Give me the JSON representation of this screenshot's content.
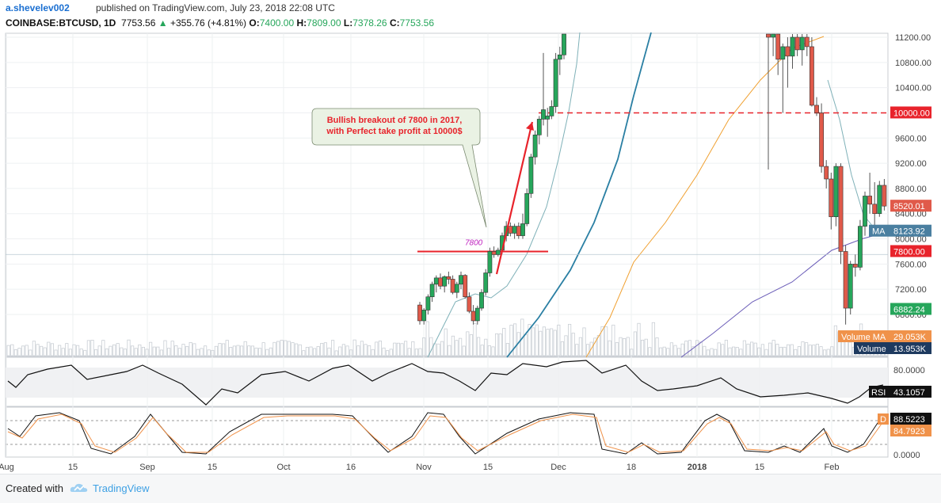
{
  "header": {
    "author": "a.shevelev002",
    "published": "published on TradingView.com, July 23, 2018 22:08 UTC",
    "symbol": "COINBASE:BTCUSD, 1D",
    "last": "7753.56",
    "change_arrow": "▲",
    "change": "+355.76 (+4.81%)",
    "o_label": "O:",
    "o": "7400.00",
    "h_label": "H:",
    "h": "7809.00",
    "l_label": "L:",
    "l": "7378.26",
    "c_label": "C:",
    "c": "7753.56"
  },
  "annotation": {
    "callout_line1": "Bullish breakout of 7800 in 2017,",
    "callout_line2": "with Perfect take profit at 10000$",
    "level_label": "7800"
  },
  "price_axis": {
    "ticks": [
      "11200.00",
      "10800.00",
      "10400.00",
      "10000.00",
      "9600.00",
      "9200.00",
      "8800.00",
      "8400.00",
      "8000.00",
      "7600.00",
      "7200.00",
      "6800.00"
    ],
    "badges": [
      {
        "text": "10000.00",
        "color": "#e8232b",
        "kind": "level"
      },
      {
        "text": "8520.01",
        "color": "#e05a4a",
        "kind": "last"
      },
      {
        "text": "8123.92",
        "color": "#4a7fa0",
        "kind": "ma"
      },
      {
        "text": "7800.00",
        "color": "#e8232b",
        "kind": "level"
      },
      {
        "text": "6882.24",
        "color": "#26a65b",
        "kind": "price"
      },
      {
        "text": "29.053K",
        "color": "#f0924a",
        "kind": "vol-ma"
      },
      {
        "text": "13.953K",
        "color": "#1e3a5f",
        "kind": "vol"
      }
    ],
    "ma_label": "MA",
    "vol_ma_label": "Volume MA",
    "vol_label": "Volume"
  },
  "rsi": {
    "label": "RSI",
    "value": "43.1057",
    "tick": "80.0000"
  },
  "stoch": {
    "label": "D",
    "value1": "88.5223",
    "value2": "84.7923",
    "tick": "0.0000"
  },
  "time_axis": [
    "Aug",
    "15",
    "Sep",
    "15",
    "Oct",
    "16",
    "Nov",
    "15",
    "Dec",
    "18",
    "2018",
    "15",
    "Feb"
  ],
  "footer": {
    "created": "Created with",
    "brand": "TradingView"
  },
  "colors": {
    "up": "#26a65b",
    "down": "#e05a4a",
    "level": "#e8232b",
    "ma_fast": "#7fb1b8",
    "ma_mid": "#2a7fa3",
    "ma_slow": "#f0a030",
    "ma_long": "#6b5db8"
  },
  "chart_data": {
    "type": "candlestick",
    "title": "COINBASE:BTCUSD, 1D",
    "ylim": [
      6640,
      11300
    ],
    "levels": [
      7800,
      10000
    ],
    "candles": [
      {
        "o": 6950,
        "h": 7000,
        "l": 6640,
        "c": 6700
      },
      {
        "o": 6700,
        "h": 6900,
        "l": 6640,
        "c": 6870
      },
      {
        "o": 6870,
        "h": 7120,
        "l": 6800,
        "c": 7080
      },
      {
        "o": 7080,
        "h": 7320,
        "l": 7000,
        "c": 7280
      },
      {
        "o": 7280,
        "h": 7420,
        "l": 7150,
        "c": 7380
      },
      {
        "o": 7380,
        "h": 7450,
        "l": 7200,
        "c": 7250
      },
      {
        "o": 7250,
        "h": 7420,
        "l": 7150,
        "c": 7400
      },
      {
        "o": 7400,
        "h": 7480,
        "l": 7280,
        "c": 7360
      },
      {
        "o": 7360,
        "h": 7420,
        "l": 7120,
        "c": 7150
      },
      {
        "o": 7150,
        "h": 7320,
        "l": 7060,
        "c": 7280
      },
      {
        "o": 7280,
        "h": 7480,
        "l": 7200,
        "c": 7420
      },
      {
        "o": 7420,
        "h": 7440,
        "l": 7050,
        "c": 7080
      },
      {
        "o": 7080,
        "h": 7150,
        "l": 6820,
        "c": 6850
      },
      {
        "o": 6850,
        "h": 6950,
        "l": 6640,
        "c": 6700
      },
      {
        "o": 6700,
        "h": 6940,
        "l": 6640,
        "c": 6900
      },
      {
        "o": 6900,
        "h": 7200,
        "l": 6860,
        "c": 7150
      },
      {
        "o": 7150,
        "h": 7520,
        "l": 7100,
        "c": 7460
      },
      {
        "o": 7460,
        "h": 7860,
        "l": 7400,
        "c": 7800
      },
      {
        "o": 7800,
        "h": 7880,
        "l": 7700,
        "c": 7750
      },
      {
        "o": 7750,
        "h": 7860,
        "l": 7720,
        "c": 7820
      },
      {
        "o": 7820,
        "h": 8100,
        "l": 7760,
        "c": 8050
      },
      {
        "o": 8050,
        "h": 8280,
        "l": 7960,
        "c": 8200
      },
      {
        "o": 8200,
        "h": 8260,
        "l": 8040,
        "c": 8090
      },
      {
        "o": 8090,
        "h": 8240,
        "l": 8000,
        "c": 8200
      },
      {
        "o": 8200,
        "h": 8260,
        "l": 8000,
        "c": 8050
      },
      {
        "o": 8050,
        "h": 8400,
        "l": 8000,
        "c": 8240
      },
      {
        "o": 8240,
        "h": 8800,
        "l": 8200,
        "c": 8720
      },
      {
        "o": 8720,
        "h": 9350,
        "l": 8650,
        "c": 9300
      },
      {
        "o": 9300,
        "h": 9720,
        "l": 9180,
        "c": 9650
      },
      {
        "o": 9650,
        "h": 9950,
        "l": 9500,
        "c": 9900
      },
      {
        "o": 9900,
        "h": 10950,
        "l": 9800,
        "c": 10050
      },
      {
        "o": 9900,
        "h": 10080,
        "l": 9620,
        "c": 9950
      },
      {
        "o": 9950,
        "h": 10200,
        "l": 9900,
        "c": 10100
      },
      {
        "o": 10100,
        "h": 10950,
        "l": 10000,
        "c": 10850
      },
      {
        "o": 10850,
        "h": 11050,
        "l": 10600,
        "c": 10920
      },
      {
        "o": 10920,
        "h": 11400,
        "l": 10850,
        "c": 11300
      }
    ],
    "candles_right": [
      {
        "o": 11250,
        "h": 11350,
        "l": 9100,
        "c": 11200
      },
      {
        "o": 11200,
        "h": 11350,
        "l": 10900,
        "c": 11250
      },
      {
        "o": 11250,
        "h": 11350,
        "l": 10600,
        "c": 10850
      },
      {
        "o": 10850,
        "h": 11100,
        "l": 10000,
        "c": 11050
      },
      {
        "o": 11050,
        "h": 11200,
        "l": 10400,
        "c": 10900
      },
      {
        "o": 10900,
        "h": 11300,
        "l": 10700,
        "c": 11200
      },
      {
        "o": 11200,
        "h": 11350,
        "l": 10900,
        "c": 11000
      },
      {
        "o": 11000,
        "h": 11300,
        "l": 10750,
        "c": 11200
      },
      {
        "o": 11200,
        "h": 11300,
        "l": 10900,
        "c": 11050
      },
      {
        "o": 11050,
        "h": 11200,
        "l": 10100,
        "c": 10120
      },
      {
        "o": 10120,
        "h": 10250,
        "l": 9950,
        "c": 10000
      },
      {
        "o": 10000,
        "h": 10150,
        "l": 9050,
        "c": 9150
      },
      {
        "o": 9150,
        "h": 9250,
        "l": 8800,
        "c": 8950
      },
      {
        "o": 8950,
        "h": 9050,
        "l": 8150,
        "c": 8350
      },
      {
        "o": 8350,
        "h": 9200,
        "l": 8200,
        "c": 9150
      },
      {
        "o": 9150,
        "h": 9200,
        "l": 7600,
        "c": 7800
      },
      {
        "o": 7800,
        "h": 7900,
        "l": 6640,
        "c": 6900
      },
      {
        "o": 6900,
        "h": 7650,
        "l": 6800,
        "c": 7600
      },
      {
        "o": 7600,
        "h": 7750,
        "l": 7400,
        "c": 7550
      },
      {
        "o": 7550,
        "h": 8300,
        "l": 7500,
        "c": 8200
      },
      {
        "o": 8200,
        "h": 8750,
        "l": 8050,
        "c": 8680
      },
      {
        "o": 8680,
        "h": 9050,
        "l": 8400,
        "c": 8550
      },
      {
        "o": 8550,
        "h": 8900,
        "l": 8200,
        "c": 8400
      },
      {
        "o": 8400,
        "h": 8920,
        "l": 8350,
        "c": 8850
      },
      {
        "o": 8850,
        "h": 8950,
        "l": 8450,
        "c": 8520
      }
    ]
  }
}
